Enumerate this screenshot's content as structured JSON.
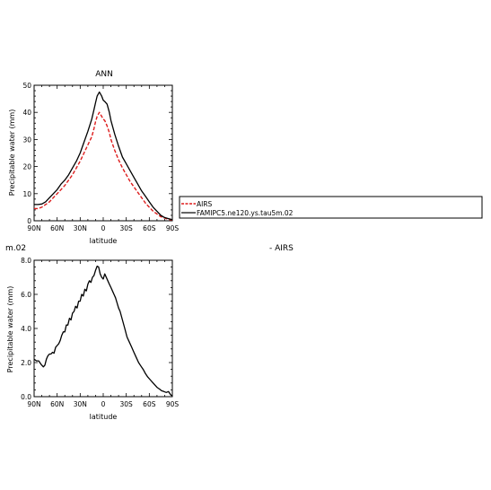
{
  "chart_data": [
    {
      "type": "line",
      "title": "ANN",
      "xlabel": "latitude",
      "ylabel": "Precipitable water (mm)",
      "xlim": [
        90,
        -90
      ],
      "ylim": [
        0,
        50
      ],
      "x_tick_labels": [
        "90N",
        "60N",
        "30N",
        "0",
        "30S",
        "60S",
        "90S"
      ],
      "x_tick_values": [
        90,
        60,
        30,
        0,
        -30,
        -60,
        -90
      ],
      "y_tick_labels": [
        "0",
        "10",
        "20",
        "30",
        "40",
        "50"
      ],
      "y_tick_values": [
        0,
        10,
        20,
        30,
        40,
        50
      ],
      "legend_position": "right",
      "series": [
        {
          "name": "AIRS",
          "color": "#dd1c1c",
          "dash": "4,2",
          "x": [
            90,
            85,
            80,
            75,
            70,
            65,
            60,
            55,
            50,
            45,
            40,
            35,
            30,
            25,
            20,
            15,
            12,
            10,
            8,
            5,
            2,
            0,
            -2,
            -5,
            -8,
            -10,
            -15,
            -20,
            -25,
            -30,
            -35,
            -40,
            -45,
            -50,
            -55,
            -60,
            -65,
            -70,
            -75,
            -80,
            -85,
            -90
          ],
          "y": [
            4.5,
            4.5,
            5.0,
            6.0,
            7.0,
            8.5,
            10.0,
            11.5,
            13.0,
            15.0,
            17.0,
            19.5,
            22.0,
            25.0,
            28.0,
            31.0,
            34.0,
            36.5,
            38.5,
            40.0,
            38.5,
            37.5,
            37.0,
            35.0,
            32.5,
            30.0,
            26.0,
            22.5,
            19.5,
            17.0,
            14.5,
            12.5,
            10.5,
            8.5,
            6.5,
            5.0,
            3.5,
            2.5,
            1.5,
            1.0,
            0.5,
            0.3
          ]
        },
        {
          "name": "FAMIPC5.ne120.ys.tau5m.02",
          "color": "#000000",
          "dash": "",
          "x": [
            90,
            85,
            80,
            75,
            70,
            65,
            60,
            55,
            50,
            45,
            40,
            35,
            30,
            25,
            20,
            15,
            12,
            10,
            8,
            5,
            2,
            0,
            -2,
            -5,
            -8,
            -10,
            -15,
            -20,
            -25,
            -30,
            -35,
            -40,
            -45,
            -50,
            -55,
            -60,
            -65,
            -70,
            -75,
            -80,
            -85,
            -90
          ],
          "y": [
            6.0,
            6.0,
            6.2,
            7.0,
            8.5,
            10.0,
            11.5,
            13.5,
            15.0,
            17.0,
            19.5,
            22.0,
            25.0,
            29.0,
            33.0,
            37.5,
            41.0,
            43.5,
            46.0,
            47.5,
            46.0,
            44.5,
            44.0,
            43.0,
            40.0,
            37.0,
            32.0,
            27.5,
            23.5,
            21.0,
            18.5,
            16.0,
            13.5,
            11.0,
            9.0,
            7.0,
            5.0,
            3.5,
            2.0,
            1.2,
            0.8,
            0.4
          ]
        }
      ]
    },
    {
      "type": "line",
      "title": "m.02",
      "xlabel": "latitude",
      "ylabel": "Precipitable water (mm)",
      "xlim": [
        90,
        -90
      ],
      "ylim": [
        0,
        8
      ],
      "x_tick_labels": [
        "90N",
        "60N",
        "30N",
        "0",
        "30S",
        "60S",
        "90S"
      ],
      "x_tick_values": [
        90,
        60,
        30,
        0,
        -30,
        -60,
        -90
      ],
      "y_tick_labels": [
        "0.0",
        "2.0",
        "4.0",
        "6.0",
        "8.0"
      ],
      "y_tick_values": [
        0,
        2,
        4,
        6,
        8
      ],
      "right_title": "-  AIRS",
      "series": [
        {
          "color": "#000000",
          "x": [
            90,
            87,
            84,
            81,
            78,
            76,
            74,
            72,
            70,
            68,
            66,
            64,
            62,
            60,
            58,
            56,
            54,
            52,
            50,
            48,
            46,
            44,
            42,
            40,
            38,
            36,
            34,
            32,
            30,
            28,
            26,
            24,
            22,
            20,
            18,
            16,
            14,
            12,
            10,
            8,
            6,
            4,
            2,
            0,
            -2,
            -4,
            -6,
            -8,
            -10,
            -12,
            -14,
            -16,
            -18,
            -20,
            -22,
            -25,
            -28,
            -31,
            -34,
            -37,
            -40,
            -43,
            -46,
            -49,
            -52,
            -55,
            -58,
            -61,
            -64,
            -67,
            -70,
            -73,
            -76,
            -79,
            -82,
            -85,
            -88,
            -90
          ],
          "y": [
            2.2,
            2.1,
            2.1,
            1.9,
            1.75,
            1.85,
            2.2,
            2.4,
            2.5,
            2.5,
            2.6,
            2.55,
            2.9,
            3.0,
            3.1,
            3.3,
            3.6,
            3.8,
            3.8,
            4.2,
            4.2,
            4.6,
            4.5,
            4.9,
            5.0,
            5.3,
            5.2,
            5.6,
            5.6,
            6.0,
            5.9,
            6.3,
            6.2,
            6.6,
            6.8,
            6.7,
            7.0,
            7.1,
            7.4,
            7.65,
            7.6,
            7.2,
            7.0,
            6.9,
            7.2,
            7.0,
            6.8,
            6.6,
            6.4,
            6.2,
            6.0,
            5.8,
            5.5,
            5.2,
            5.0,
            4.5,
            4.0,
            3.5,
            3.2,
            2.9,
            2.6,
            2.3,
            2.0,
            1.8,
            1.6,
            1.35,
            1.15,
            1.0,
            0.85,
            0.7,
            0.55,
            0.45,
            0.35,
            0.3,
            0.25,
            0.3,
            0.1,
            0.05
          ]
        }
      ]
    }
  ]
}
